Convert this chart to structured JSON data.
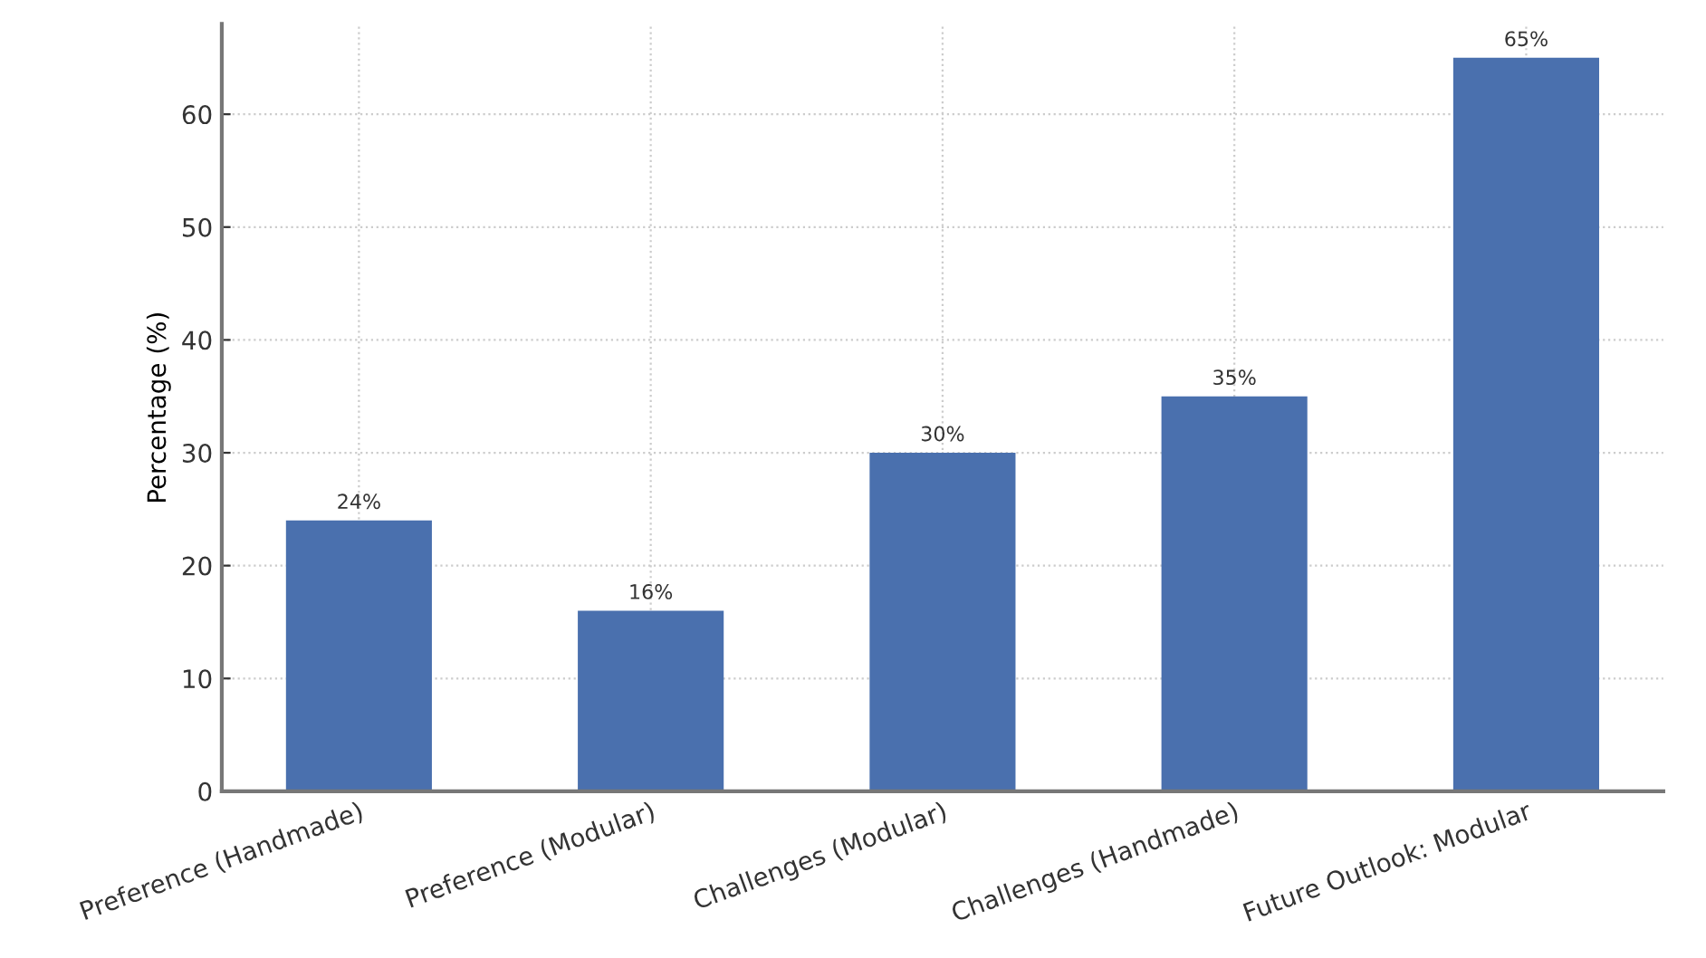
{
  "chart_data": {
    "type": "bar",
    "ylabel": "Percentage (%)",
    "categories": [
      "Preference (Handmade)",
      "Preference (Modular)",
      "Challenges (Modular)",
      "Challenges (Handmade)",
      "Future Outlook: Modular"
    ],
    "values": [
      24,
      16,
      30,
      35,
      65
    ],
    "value_labels": [
      "24%",
      "16%",
      "30%",
      "35%",
      "65%"
    ],
    "color": "#4a70ae",
    "ylim": [
      0,
      68
    ],
    "yticks": [
      0,
      10,
      20,
      30,
      40,
      50,
      60
    ],
    "grid": true
  }
}
